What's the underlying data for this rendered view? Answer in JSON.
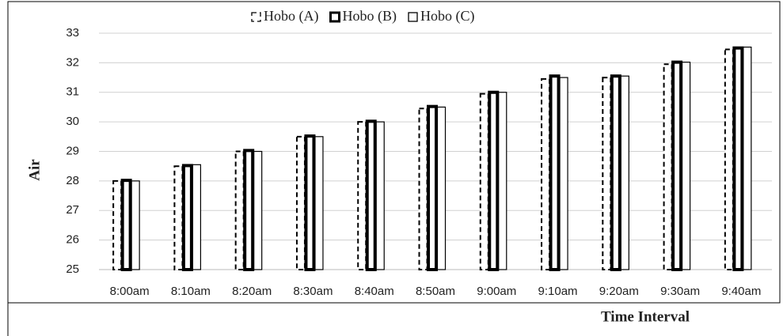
{
  "chart_data": {
    "type": "bar",
    "x_label": "Time Interval",
    "y_label": "Air",
    "categories": [
      "8:00am",
      "8:10am",
      "8:20am",
      "8:30am",
      "8:40am",
      "8:50am",
      "9:00am",
      "9:10am",
      "9:20am",
      "9:30am",
      "9:40am"
    ],
    "series": [
      {
        "name": "Hobo (A)",
        "color": "#000000",
        "stroke_style": "dashed",
        "values": [
          28.0,
          28.5,
          29.0,
          29.5,
          30.0,
          30.45,
          30.95,
          31.45,
          31.5,
          31.95,
          32.45
        ]
      },
      {
        "name": "Hobo (B)",
        "color": "#000000",
        "stroke_style": "thick",
        "values": [
          28.02,
          28.52,
          29.03,
          29.52,
          30.02,
          30.52,
          31.0,
          31.55,
          31.55,
          32.02,
          32.5
        ]
      },
      {
        "name": "Hobo (C)",
        "color": "#000000",
        "stroke_style": "thin",
        "values": [
          28.0,
          28.55,
          29.0,
          29.5,
          30.0,
          30.5,
          31.0,
          31.5,
          31.55,
          32.02,
          32.53
        ]
      }
    ],
    "ylim": [
      25,
      33
    ],
    "yticks": [
      25,
      26,
      27,
      28,
      29,
      30,
      31,
      32,
      33
    ],
    "grid": true,
    "legend": "top"
  }
}
